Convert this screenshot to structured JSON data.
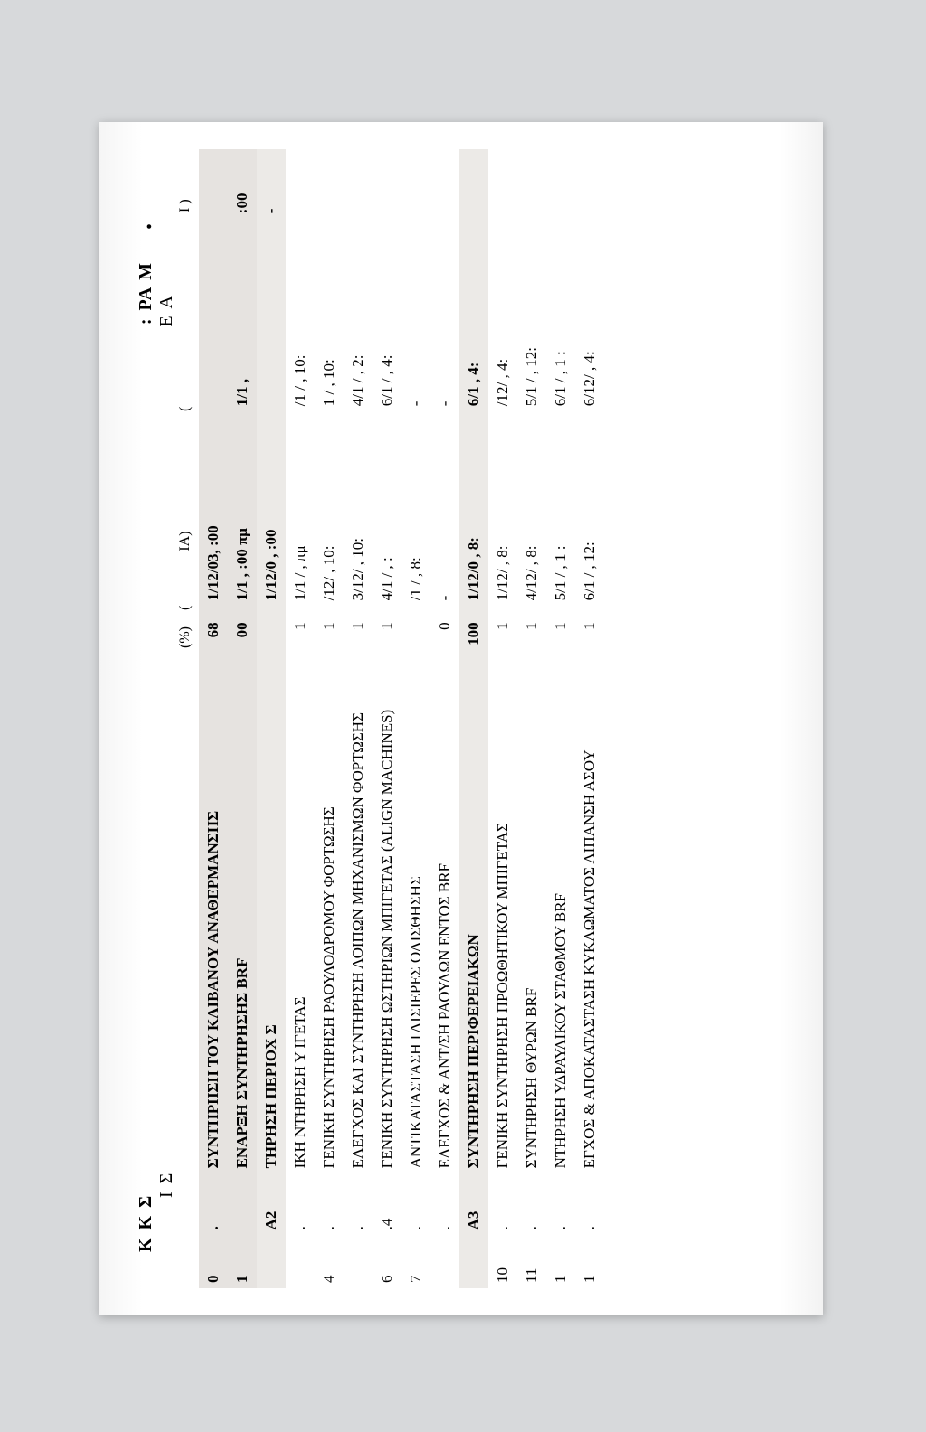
{
  "header": {
    "left_top": "Κ    Κ  Σ",
    "left_sub": "Ι  Σ",
    "right_top": ": ΡΑ  Μ",
    "right_dot": ".",
    "right_sub": "Ε  Α"
  },
  "column_labels": {
    "pct": "(%)",
    "d1_prefix": "(",
    "d1_suffix": "ΙΑ)",
    "d2_prefix": "(",
    "d2_suffix": "",
    "end": "Ι )"
  },
  "rows": [
    {
      "type": "band",
      "num": "0",
      "code": ".",
      "desc": "ΣΥΝΤΗΡΗΣΗ ΤΟΥ ΚΛΙΒΑΝΟΥ ΑΝΑΘΕΡΜΑΝΣΗΣ",
      "pct": "68",
      "d1": "1/12/03,  :00",
      "d2": "",
      "end": ""
    },
    {
      "type": "band",
      "num": "1",
      "code": "",
      "desc": "ΕΝΑΡΞΗ ΣΥΝΤΗΡΗΣΗΣ BRF",
      "pct": "00",
      "d1": "1/1   ,  :00 πμ",
      "d2": "1/1    ,",
      "end": ":00"
    },
    {
      "type": "band2",
      "num": "",
      "code": "Α2",
      "desc": "  ΤΗΡΗΣΗ ΠΕΡΙΟΧ  Σ",
      "pct": "",
      "d1": "1/12/0 ,  :00",
      "d2": "",
      "end": "-"
    },
    {
      "type": "row",
      "num": "",
      "code": ".",
      "desc": "   ΙΚΗ   ΝΤΗΡΗΣΗ           Υ    ΙΓΕΤΑΣ",
      "pct": "1",
      "d1": "1/1 /  ,       πμ",
      "d2": " /1 /    , 10:",
      "end": ""
    },
    {
      "type": "row",
      "num": "4",
      "code": ".",
      "desc": "ΓΕΝΙΚΗ ΣΥΝΤΗΡΗΣΗ ΡΑΟΥΛΟΔΡΟΜΟΥ ΦΟΡΤΩΣΗΣ",
      "pct": "1",
      "d1": " /12/   , 10:",
      "d2": " 1 /    , 10:",
      "end": ""
    },
    {
      "type": "row",
      "num": "",
      "code": ".",
      "desc": "ΕΛΕΓΧΟΣ ΚΑΙ ΣΥΝΤΗΡΗΣΗ ΛΟΙΠΩΝ ΜΗΧΑΝΙΣΜΩΝ ΦΟΡΤΩΣΗΣ",
      "pct": "1",
      "d1": "3/12/   , 10:",
      "d2": "4/1 /    , 2:",
      "end": ""
    },
    {
      "type": "row",
      "num": "6",
      "code": ".4",
      "desc": "ΓΕΝΙΚΗ ΣΥΝΤΗΡΗΣΗ ΩΣΤΗΡΙΩΝ ΜΠΙΓΕΤΑΣ (ALIGN MACHINES)",
      "pct": "1",
      "d1": "4/1  /  ,    :",
      "d2": "6/1 /    , 4:",
      "end": ""
    },
    {
      "type": "row",
      "num": "7",
      "code": ".",
      "desc": "ΑΝΤΙΚΑΤΑΣΤΑΣΗ ΓΛΙΣΙΕΡΕΣ ΟΛΙΣΘΗΣΗΣ",
      "pct": "",
      "d1": " /1 /   , 8:",
      "d2": "-",
      "end": ""
    },
    {
      "type": "row",
      "num": "",
      "code": ".",
      "desc": "ΕΛΕΓΧΟΣ & ΑΝΤ/ΣΗ  ΡΑΟΥΛΩΝ ΕΝΤΟΣ BRF",
      "pct": "0",
      "d1": "-",
      "d2": "-",
      "end": ""
    },
    {
      "type": "band2",
      "num": "",
      "code": "Α3",
      "desc": "ΣΥΝΤΗΡΗΣΗ ΠΕΡΙΦΕΡΕΙΑΚΩΝ",
      "pct": "100",
      "d1": "1/12/0 , 8:",
      "d2": "6/1    , 4:",
      "end": ""
    },
    {
      "type": "row",
      "num": "10",
      "code": ".",
      "desc": "ΓΕΝΙΚΗ ΣΥΝΤΗΡΗΣΗ ΠΡΟΩΘΗΤΙΚΟΥ ΜΠΙΓΕΤΑΣ",
      "pct": "1",
      "d1": "1/12/   , 8:",
      "d2": " /12/    , 4:",
      "end": ""
    },
    {
      "type": "row",
      "num": "11",
      "code": ".",
      "desc": "ΣΥΝΤΗΡΗΣΗ ΘΥΡΩΝ BRF",
      "pct": "1",
      "d1": "4/12/   , 8:",
      "d2": "5/1 /    , 12:",
      "end": ""
    },
    {
      "type": "row",
      "num": "1",
      "code": ".",
      "desc": "  ΝΤΗΡΗΣΗ ΥΔΡΑΥΛΙΚΟΥ ΣΤΑΘΜΟΥ BRF",
      "pct": "1",
      "d1": "5/1 /   , 1  :",
      "d2": "6/1 /   , 1  :",
      "end": ""
    },
    {
      "type": "row",
      "num": "1",
      "code": ".",
      "desc": "ΕΓΧΟΣ & ΑΠΟΚΑΤΑΣΤΑΣΗ ΚΥΚΛΩΜΑΤΟΣ ΛΙΠΑΝΣΗ  ΑΣΟΥ",
      "pct": "1",
      "d1": "6/1 /   , 12:",
      "d2": "6/12/    , 4:",
      "end": ""
    }
  ]
}
